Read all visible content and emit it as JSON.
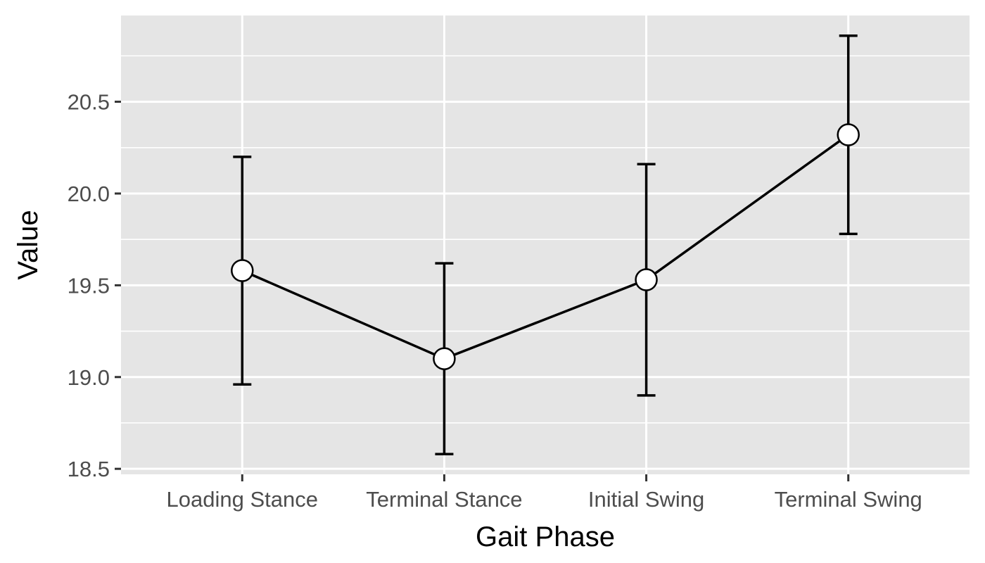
{
  "chart_data": {
    "type": "line",
    "title": "",
    "xlabel": "Gait Phase",
    "ylabel": "Value",
    "categories": [
      "Loading Stance",
      "Terminal Stance",
      "Initial Swing",
      "Terminal Swing"
    ],
    "series": [
      {
        "values": [
          19.58,
          19.1,
          19.53,
          20.32
        ],
        "error_low": [
          18.96,
          18.58,
          18.9,
          19.78
        ],
        "error_high": [
          20.2,
          19.62,
          20.16,
          20.86
        ]
      }
    ],
    "ylim": [
      18.47,
      20.97
    ],
    "yticks": [
      18.5,
      19.0,
      19.5,
      20.0,
      20.5
    ],
    "ytick_labels": [
      "18.5",
      "19.0",
      "19.5",
      "20.0",
      "20.5"
    ],
    "grid": true,
    "legend": "none",
    "colors": {
      "panel": "#e5e5e5",
      "grid": "#ffffff",
      "line": "#000000",
      "marker_fill": "#ffffff",
      "tick_text": "#4d4d4d",
      "tick": "#333333"
    }
  }
}
